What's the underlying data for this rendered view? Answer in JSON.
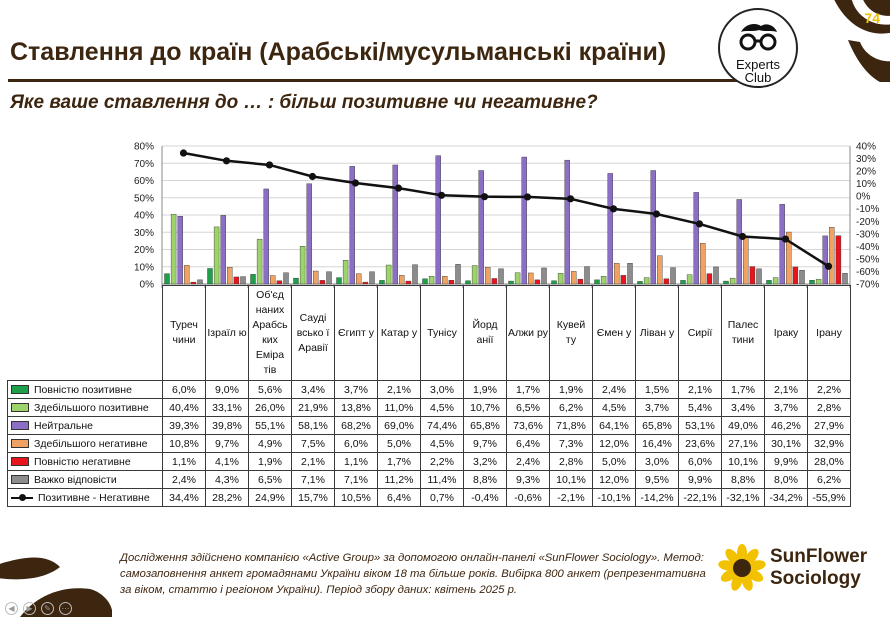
{
  "slide": {
    "page_number": "74",
    "title": "Ставлення до країн (Арабські/мусульманські країни)",
    "subtitle": "Яке ваше ставлення до … : більш позитивне чи негативне?",
    "note": "Дослідження здійснено компанією «Active Group» за допомогою онлайн-панелі «SunFlower Sociology». Метод: самозаповнення анкет громадянами України віком 18 та більше років. Вибірка 800 анкет (репрезентативна за віком, статтю і регіоном України). Період збору даних: квітень 2025 р.",
    "logo_experts": {
      "line1": "Experts",
      "line2": "Club"
    },
    "logo_sunflower": {
      "line1": "SunFlower",
      "line2": "Sociology"
    },
    "colors": {
      "brand_brown": "#3d2610",
      "brand_yellow": "#f2c200"
    }
  },
  "chart_data": {
    "type": "bar",
    "categories": [
      "Туреччини",
      "Ізраїлю",
      "Об'єднаних Арабських Еміратів",
      "Саудівської Аравії",
      "Єгипту",
      "Катару",
      "Тунісу",
      "Йорданії",
      "Алжиру",
      "Кувейту",
      "Ємену",
      "Лівану",
      "Сирії",
      "Палестини",
      "Іраку",
      "Ірану"
    ],
    "category_labels": [
      "Туреч чини",
      "Ізраїл ю",
      "Об'єд наних Арабсь ких Еміра тів",
      "Сауді всько ї Аравії",
      "Єгипт у",
      "Катар у",
      "Тунісу",
      "Йорд анії",
      "Алжи ру",
      "Кувей ту",
      "Ємен у",
      "Ліван у",
      "Сирії",
      "Палес тини",
      "Іраку",
      "Ірану"
    ],
    "series": [
      {
        "name": "Повністю позитивне",
        "color": "#1ea04a",
        "values": [
          6.0,
          9.0,
          5.6,
          3.4,
          3.7,
          2.1,
          3.0,
          1.9,
          1.7,
          1.9,
          2.4,
          1.5,
          2.1,
          1.7,
          2.1,
          2.2
        ]
      },
      {
        "name": "Здебільшого позитивне",
        "color": "#9cd36a",
        "values": [
          40.4,
          33.1,
          26.0,
          21.9,
          13.8,
          11.0,
          4.5,
          10.7,
          6.5,
          6.2,
          4.5,
          3.7,
          5.4,
          3.4,
          3.7,
          2.8
        ]
      },
      {
        "name": "Нейтральне",
        "color": "#8a6fc4",
        "values": [
          39.3,
          39.8,
          55.1,
          58.1,
          68.2,
          69.0,
          74.4,
          65.8,
          73.6,
          71.8,
          64.1,
          65.8,
          53.1,
          49.0,
          46.2,
          27.9
        ]
      },
      {
        "name": "Здебільшого негативне",
        "color": "#f0a263",
        "values": [
          10.8,
          9.7,
          4.9,
          7.5,
          6.0,
          5.0,
          4.5,
          9.7,
          6.4,
          7.3,
          12.0,
          16.4,
          23.6,
          27.1,
          30.1,
          32.9
        ]
      },
      {
        "name": "Повністю негативне",
        "color": "#e8141c",
        "values": [
          1.1,
          4.1,
          1.9,
          2.1,
          1.1,
          1.7,
          2.2,
          3.2,
          2.4,
          2.8,
          5.0,
          3.0,
          6.0,
          10.1,
          9.9,
          28.0
        ]
      },
      {
        "name": "Важко відповісти",
        "color": "#8c8c8c",
        "values": [
          2.4,
          4.3,
          6.5,
          7.1,
          7.1,
          11.2,
          11.4,
          8.8,
          9.3,
          10.1,
          12.0,
          9.5,
          9.9,
          8.8,
          8.0,
          6.2
        ]
      }
    ],
    "line_series": {
      "name": "Позитивне - Негативне",
      "color": "#111111",
      "values": [
        34.4,
        28.2,
        24.9,
        15.7,
        10.5,
        6.4,
        0.7,
        -0.4,
        -0.6,
        -2.1,
        -10.1,
        -14.2,
        -22.1,
        -32.1,
        -34.2,
        -55.9
      ]
    },
    "y_left": {
      "min": 0,
      "max": 80,
      "ticks": [
        "80%",
        "70%",
        "60%",
        "50%",
        "40%",
        "30%",
        "20%",
        "10%",
        "0%"
      ]
    },
    "y_right": {
      "min": -70,
      "max": 40,
      "ticks": [
        "40%",
        "30%",
        "20%",
        "10%",
        "0%",
        "-10%",
        "-20%",
        "-30%",
        "-40%",
        "-50%",
        "-60%",
        "-70%"
      ]
    },
    "grid": true,
    "legend": "table-left"
  }
}
